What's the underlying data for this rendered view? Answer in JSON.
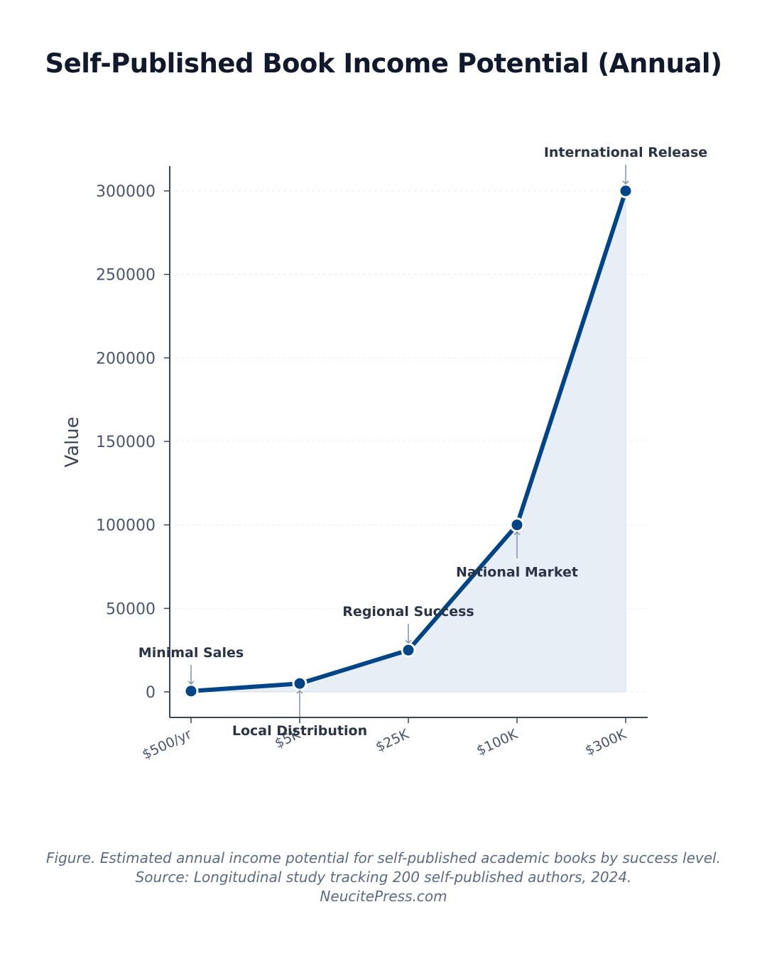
{
  "title": "Self-Published Book Income Potential (Annual)",
  "caption": {
    "line1": "Figure. Estimated annual income potential for self-published academic books by success level.",
    "line2": "Source: Longitudinal study tracking 200 self-published authors, 2024.",
    "line3": "NeucitePress.com"
  },
  "chart_data": {
    "type": "area",
    "title": "Self-Published Book Income Potential (Annual)",
    "xlabel": "",
    "ylabel": "Value",
    "categories": [
      "$500/yr",
      "$5K",
      "$25K",
      "$100K",
      "$300K"
    ],
    "values": [
      500,
      5000,
      25000,
      100000,
      300000
    ],
    "annotations": [
      {
        "category": "$500/yr",
        "text": "Minimal Sales",
        "position": "above"
      },
      {
        "category": "$5K",
        "text": "Local Distribution",
        "position": "below"
      },
      {
        "category": "$25K",
        "text": "Regional Success",
        "position": "above"
      },
      {
        "category": "$100K",
        "text": "National Market",
        "position": "below"
      },
      {
        "category": "$300K",
        "text": "International Release",
        "position": "above"
      }
    ],
    "ylim": [
      -15000,
      315000
    ],
    "yticks": [
      0,
      50000,
      100000,
      150000,
      200000,
      250000,
      300000
    ],
    "grid": true,
    "legend": "none",
    "colors": {
      "line": "#004488",
      "fill": "#e8eef6",
      "axis": "#3a4558",
      "tick_label": "#4a566b",
      "grid": "#eeeeee",
      "annotation_text": "#2b3446",
      "annotation_arrow": "#8a97a8"
    }
  }
}
